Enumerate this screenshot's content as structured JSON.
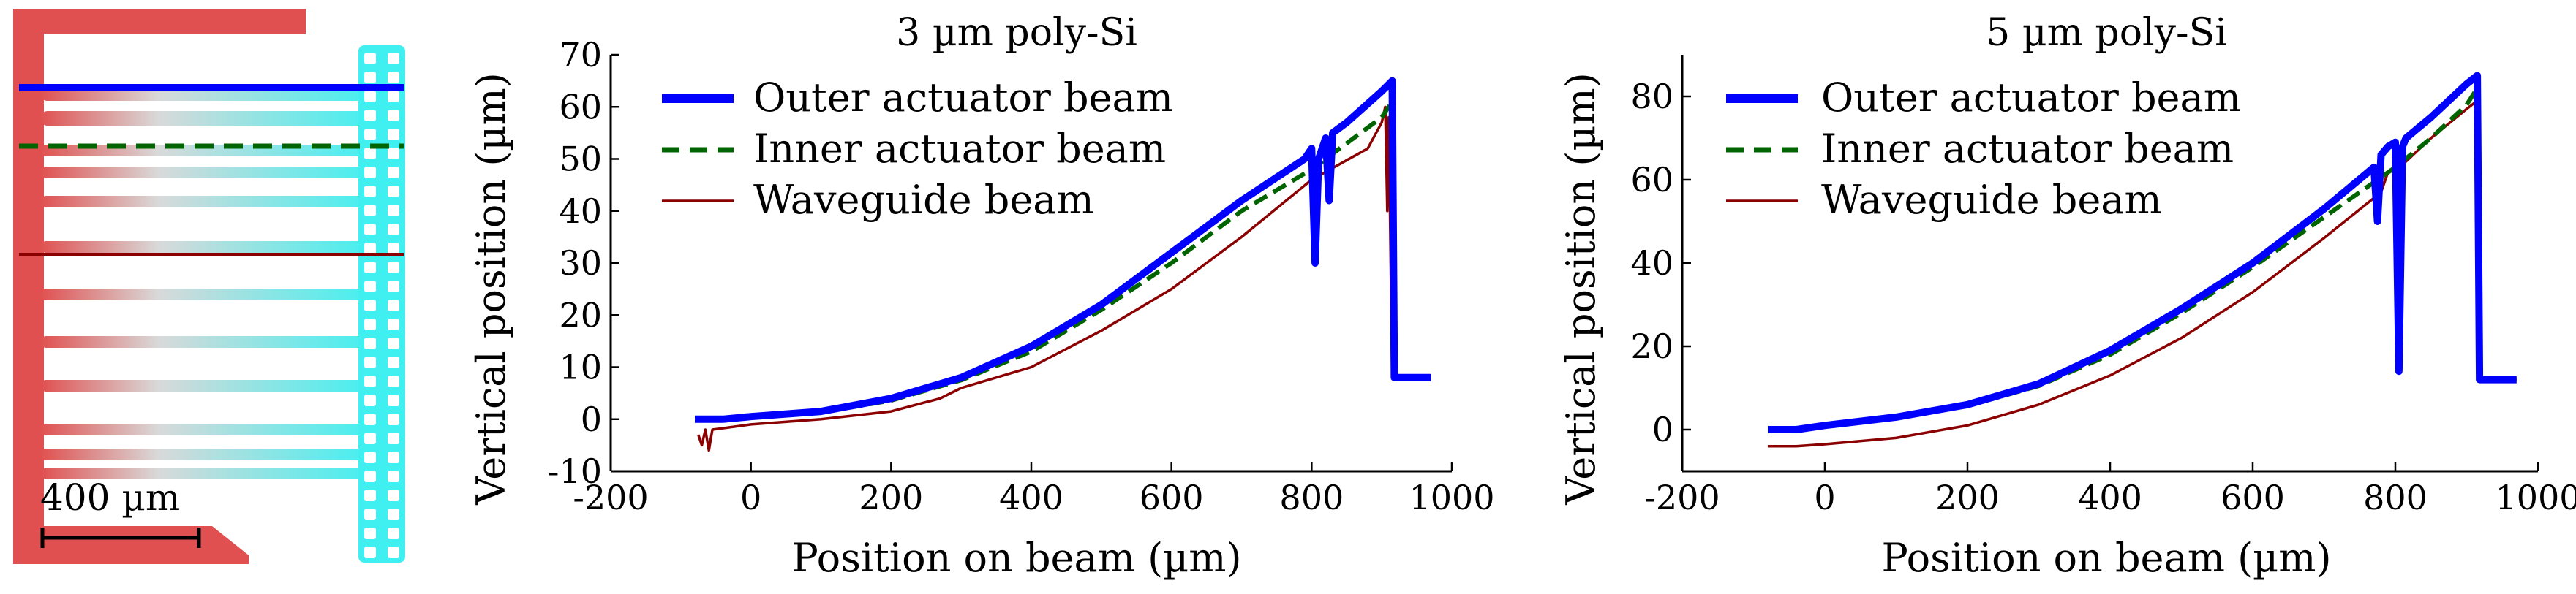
{
  "micrograph": {
    "scale_bar_label": "400 µm",
    "colors": {
      "frame": "#e05050",
      "beams_gradient_start": "#e8a0a0",
      "beams_gradient_end": "#40f0f0",
      "waveguide_frame": "#40f0f0"
    }
  },
  "chart_data": [
    {
      "type": "line",
      "title": "3 µm poly-Si",
      "xlabel": "Position on beam (µm)",
      "ylabel": "Vertical position (µm)",
      "xlim": [
        -200,
        1000
      ],
      "ylim": [
        -10,
        70
      ],
      "xticks": [
        -200,
        0,
        200,
        400,
        600,
        800,
        1000
      ],
      "yticks": [
        -10,
        0,
        10,
        20,
        30,
        40,
        50,
        60,
        70
      ],
      "legend_position": "top-left",
      "series": [
        {
          "name": "Outer actuator beam",
          "color": "#0000ff",
          "style": "solid-thick",
          "x": [
            -80,
            -40,
            0,
            100,
            200,
            300,
            400,
            500,
            600,
            700,
            790,
            800,
            805,
            810,
            820,
            825,
            830,
            850,
            900,
            915,
            918,
            920,
            970
          ],
          "y": [
            0,
            0,
            0.5,
            1.5,
            4,
            8,
            14,
            22,
            32,
            42,
            50,
            52,
            30,
            50,
            54,
            42,
            55,
            57,
            63,
            65,
            8,
            8,
            8
          ]
        },
        {
          "name": "Inner actuator beam",
          "color": "#006400",
          "style": "dashed",
          "x": [
            -80,
            -40,
            0,
            100,
            200,
            300,
            400,
            500,
            600,
            700,
            800,
            850,
            900,
            915,
            918,
            920,
            970
          ],
          "y": [
            0,
            0,
            0.3,
            1.3,
            3.6,
            7.5,
            13,
            21,
            30,
            40,
            48,
            53,
            58,
            61,
            8,
            8,
            8
          ]
        },
        {
          "name": "Waveguide beam",
          "color": "#8b0000",
          "style": "solid-thin",
          "x": [
            -75,
            -70,
            -65,
            -60,
            -55,
            0,
            100,
            200,
            270,
            300,
            400,
            500,
            600,
            700,
            800,
            880,
            900,
            905,
            908,
            910,
            915,
            970
          ],
          "y": [
            -3,
            -5,
            -2,
            -6,
            -2,
            -1,
            0,
            1.5,
            4,
            6,
            10,
            17,
            25,
            35,
            46,
            52,
            57,
            60,
            40,
            58,
            8,
            8
          ]
        }
      ]
    },
    {
      "type": "line",
      "title": "5 µm poly-Si",
      "xlabel": "Position on beam (µm)",
      "ylabel": "Vertical position (µm)",
      "xlim": [
        -200,
        1000
      ],
      "ylim": [
        -10,
        90
      ],
      "xticks": [
        -200,
        0,
        200,
        400,
        600,
        800,
        1000
      ],
      "yticks": [
        0,
        20,
        40,
        60,
        80
      ],
      "legend_position": "top-left",
      "series": [
        {
          "name": "Outer actuator beam",
          "color": "#0000ff",
          "style": "solid-thick",
          "x": [
            -80,
            -40,
            0,
            100,
            200,
            300,
            400,
            500,
            600,
            700,
            770,
            775,
            780,
            790,
            800,
            805,
            810,
            815,
            850,
            900,
            915,
            918,
            920,
            970
          ],
          "y": [
            0,
            0,
            1,
            3,
            6,
            11,
            19,
            29,
            40,
            53,
            63,
            50,
            66,
            68,
            69,
            14,
            68,
            70,
            75,
            83,
            85,
            12,
            12,
            12
          ]
        },
        {
          "name": "Inner actuator beam",
          "color": "#006400",
          "style": "dashed",
          "x": [
            -80,
            -40,
            0,
            100,
            200,
            300,
            400,
            500,
            600,
            700,
            800,
            850,
            900,
            915,
            918,
            920,
            970
          ],
          "y": [
            0,
            0,
            0.8,
            2.8,
            5.7,
            10.5,
            18,
            28,
            39,
            51,
            63,
            70,
            78,
            82,
            12,
            12,
            12
          ]
        },
        {
          "name": "Waveguide beam",
          "color": "#8b0000",
          "style": "solid-thin",
          "x": [
            -80,
            -40,
            0,
            100,
            200,
            300,
            400,
            500,
            600,
            700,
            780,
            790,
            800,
            850,
            900,
            915,
            918,
            920,
            970
          ],
          "y": [
            -4,
            -4,
            -3.5,
            -2,
            1,
            6,
            13,
            22,
            33,
            46,
            57,
            62,
            62,
            70,
            77,
            79,
            12,
            12,
            12
          ]
        }
      ]
    }
  ]
}
